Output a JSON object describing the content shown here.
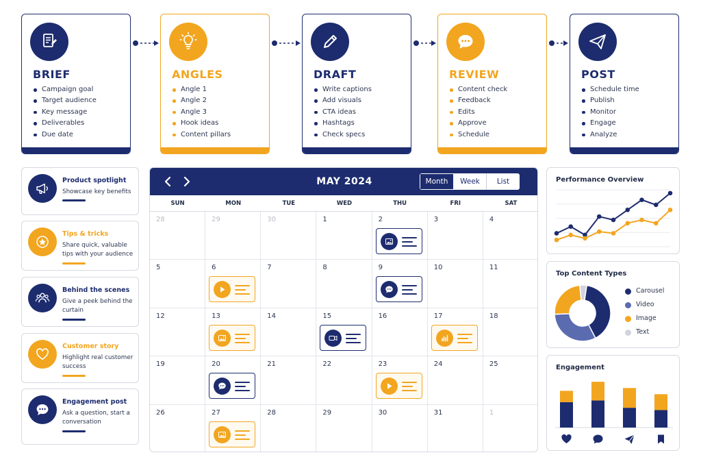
{
  "workflow": [
    {
      "title": "BRIEF",
      "color": "#1d2c6e",
      "icon": "document-edit-icon",
      "items": [
        "Campaign goal",
        "Target audience",
        "Key message",
        "Deliverables",
        "Due date"
      ]
    },
    {
      "title": "ANGLES",
      "color": "#f2a51f",
      "icon": "lightbulb-icon",
      "items": [
        "Angle 1",
        "Angle 2",
        "Angle 3",
        "Hook ideas",
        "Content pillars"
      ]
    },
    {
      "title": "DRAFT",
      "color": "#1d2c6e",
      "icon": "pencil-icon",
      "items": [
        "Write captions",
        "Add visuals",
        "CTA ideas",
        "Hashtags",
        "Check specs"
      ]
    },
    {
      "title": "REVIEW",
      "color": "#f2a51f",
      "icon": "chat-bubble-icon",
      "items": [
        "Content check",
        "Feedback",
        "Edits",
        "Approve",
        "Schedule"
      ]
    },
    {
      "title": "POST",
      "color": "#1d2c6e",
      "icon": "paper-plane-icon",
      "items": [
        "Schedule time",
        "Publish",
        "Monitor",
        "Engage",
        "Analyze"
      ]
    }
  ],
  "content_types": [
    {
      "title": "Product spotlight",
      "desc": "Showcase key benefits",
      "color": "#1d2c6e",
      "icon": "megaphone-icon"
    },
    {
      "title": "Tips & tricks",
      "desc": "Share quick, valuable tips with your audience",
      "color": "#f2a51f",
      "icon": "star-badge-icon"
    },
    {
      "title": "Behind the scenes",
      "desc": "Give a peek behind the curtain",
      "color": "#1d2c6e",
      "icon": "people-icon"
    },
    {
      "title": "Customer story",
      "desc": "Highlight real customer success",
      "color": "#f2a51f",
      "icon": "heart-icon"
    },
    {
      "title": "Engagement post",
      "desc": "Ask a question, start a conversation",
      "color": "#1d2c6e",
      "icon": "chat-bubble-icon"
    }
  ],
  "calendar": {
    "title": "MAY 2024",
    "views": [
      "Month",
      "Week",
      "List"
    ],
    "active_view": "Month",
    "weekdays": [
      "SUN",
      "MON",
      "TUE",
      "WED",
      "THU",
      "FRI",
      "SAT"
    ],
    "weeks": [
      [
        {
          "d": "28",
          "muted": true
        },
        {
          "d": "29",
          "muted": true
        },
        {
          "d": "30",
          "muted": true
        },
        {
          "d": "1"
        },
        {
          "d": "2",
          "post": {
            "type": "image",
            "color": "navy"
          }
        },
        {
          "d": "3"
        },
        {
          "d": "4"
        }
      ],
      [
        {
          "d": "5"
        },
        {
          "d": "6",
          "post": {
            "type": "video",
            "color": "orange"
          }
        },
        {
          "d": "7"
        },
        {
          "d": "8"
        },
        {
          "d": "9",
          "post": {
            "type": "chat",
            "color": "navy"
          }
        },
        {
          "d": "10"
        },
        {
          "d": "11"
        }
      ],
      [
        {
          "d": "12"
        },
        {
          "d": "13",
          "post": {
            "type": "image",
            "color": "orange"
          }
        },
        {
          "d": "14"
        },
        {
          "d": "15",
          "post": {
            "type": "camera",
            "color": "navy"
          }
        },
        {
          "d": "16"
        },
        {
          "d": "17",
          "post": {
            "type": "chart",
            "color": "orange"
          }
        },
        {
          "d": "18"
        }
      ],
      [
        {
          "d": "19"
        },
        {
          "d": "20",
          "post": {
            "type": "chat",
            "color": "navy"
          }
        },
        {
          "d": "21"
        },
        {
          "d": "22"
        },
        {
          "d": "23",
          "post": {
            "type": "video",
            "color": "orange"
          }
        },
        {
          "d": "24"
        },
        {
          "d": "25"
        }
      ],
      [
        {
          "d": "26"
        },
        {
          "d": "27",
          "post": {
            "type": "image",
            "color": "orange"
          }
        },
        {
          "d": "28"
        },
        {
          "d": "29"
        },
        {
          "d": "30"
        },
        {
          "d": "31"
        },
        {
          "d": "1",
          "muted": true
        }
      ]
    ]
  },
  "performance": {
    "title": "Performance Overview",
    "series": [
      {
        "color": "#1d2c6e",
        "values": [
          8,
          12,
          7,
          18,
          16,
          22,
          28,
          25,
          32
        ]
      },
      {
        "color": "#f2a51f",
        "values": [
          4,
          7,
          5,
          9,
          8,
          14,
          16,
          14,
          22
        ]
      }
    ]
  },
  "top_content": {
    "title": "Top Content Types",
    "slices": [
      {
        "label": "Carousel",
        "value": 40,
        "color": "#1d2c6e"
      },
      {
        "label": "Video",
        "value": 32,
        "color": "#5b6bb0"
      },
      {
        "label": "Image",
        "value": 24,
        "color": "#f2a51f"
      },
      {
        "label": "Text",
        "value": 4,
        "color": "#d1d4dd"
      }
    ]
  },
  "engagement": {
    "title": "Engagement",
    "bars": [
      {
        "icon": "heart-icon",
        "navy": 0.45,
        "orange": 0.2
      },
      {
        "icon": "chat-bubble-icon",
        "navy": 0.48,
        "orange": 0.33
      },
      {
        "icon": "paper-plane-icon",
        "navy": 0.35,
        "orange": 0.35
      },
      {
        "icon": "bookmark-icon",
        "navy": 0.31,
        "orange": 0.28
      }
    ]
  }
}
